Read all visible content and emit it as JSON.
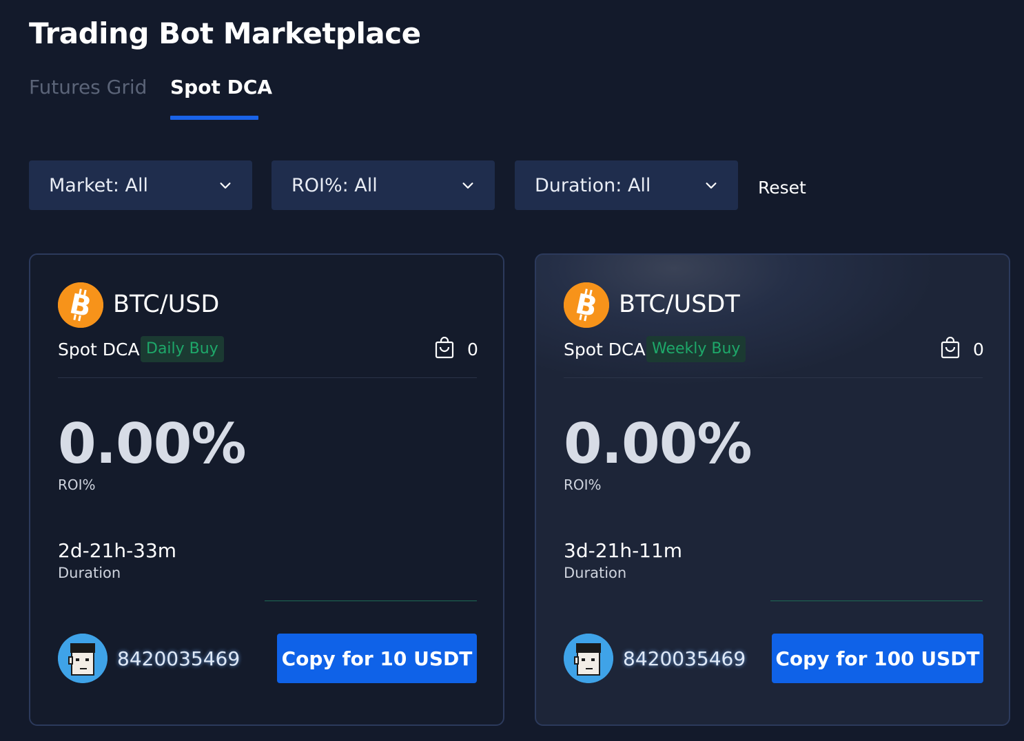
{
  "page": {
    "title": "Trading Bot Marketplace"
  },
  "tabs": [
    {
      "label": "Futures Grid",
      "active": false
    },
    {
      "label": "Spot DCA",
      "active": true
    }
  ],
  "filters": {
    "market": "Market: All",
    "roi": "ROI%: All",
    "duration": "Duration: All",
    "reset": "Reset"
  },
  "colors": {
    "background": "#131a2b",
    "accent": "#1a63e8",
    "badge_text": "#1ea86a",
    "bitcoin": "#f7931a"
  },
  "cards": [
    {
      "coin_icon": "bitcoin-icon",
      "pair": "BTC/USD",
      "bot_type": "Spot DCA",
      "frequency": "Daily Buy",
      "copies": "0",
      "roi_value": "0.00%",
      "roi_label": "ROI%",
      "duration_value": "2d-21h-33m",
      "duration_label": "Duration",
      "user_id": "8420035469",
      "copy_button": "Copy for 10 USDT"
    },
    {
      "coin_icon": "bitcoin-icon",
      "pair": "BTC/USDT",
      "bot_type": "Spot DCA",
      "frequency": "Weekly Buy",
      "copies": "0",
      "roi_value": "0.00%",
      "roi_label": "ROI%",
      "duration_value": "3d-21h-11m",
      "duration_label": "Duration",
      "user_id": "8420035469",
      "copy_button": "Copy for 100 USDT"
    }
  ]
}
